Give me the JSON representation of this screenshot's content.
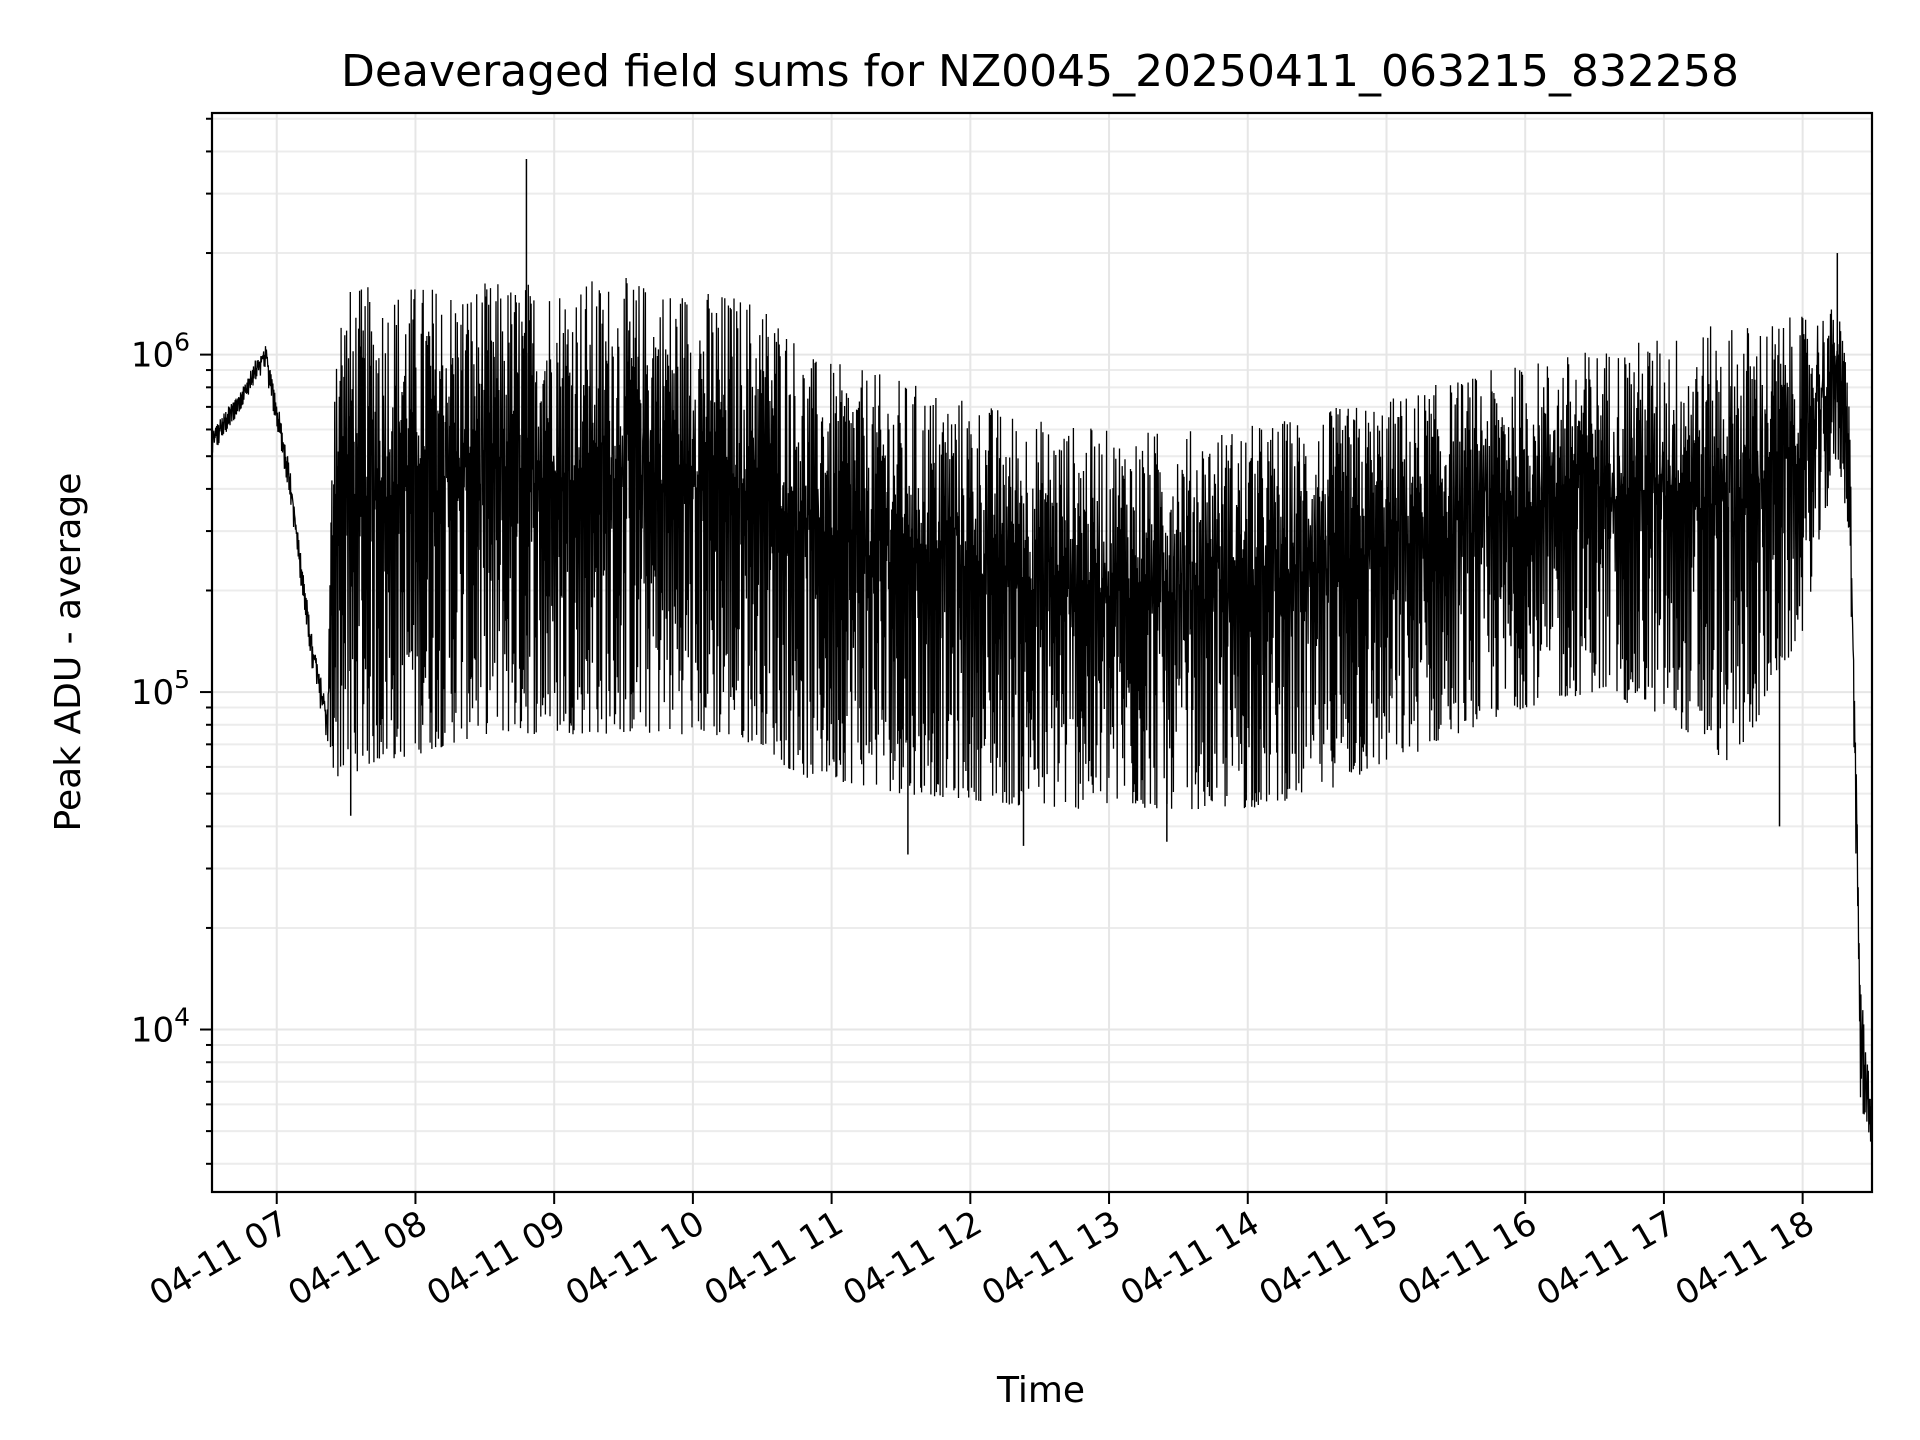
{
  "chart_data": {
    "type": "line",
    "title": "Deaveraged field sums for NZ0045_20250411_063215_832258",
    "xlabel": "Time",
    "ylabel": "Peak ADU - average",
    "yscale": "log",
    "grid": true,
    "xlim": [
      "2025-04-11 06:32",
      "2025-04-11 18:30"
    ],
    "ylim": [
      3300,
      5200000
    ],
    "x_ticks": [
      "04-11 07",
      "04-11 08",
      "04-11 09",
      "04-11 10",
      "04-11 11",
      "04-11 12",
      "04-11 13",
      "04-11 14",
      "04-11 15",
      "04-11 16",
      "04-11 17",
      "04-11 18"
    ],
    "y_ticks": [
      {
        "value": 10000,
        "base": "10",
        "exp": "4"
      },
      {
        "value": 100000,
        "base": "10",
        "exp": "5"
      },
      {
        "value": 1000000,
        "base": "10",
        "exp": "6"
      }
    ],
    "line_color": "#000000",
    "envelope": {
      "time": [
        "06:32",
        "06:45",
        "06:55",
        "07:05",
        "07:15",
        "07:22",
        "07:25",
        "07:40",
        "08:00",
        "08:30",
        "09:00",
        "09:30",
        "10:00",
        "10:30",
        "10:40",
        "10:50",
        "11:00",
        "11:30",
        "12:00",
        "12:30",
        "13:00",
        "13:30",
        "14:00",
        "14:30",
        "15:00",
        "15:30",
        "16:00",
        "16:30",
        "17:00",
        "17:30",
        "18:00",
        "18:15",
        "18:20",
        "18:22",
        "18:25",
        "18:28",
        "18:30"
      ],
      "upper": [
        600000,
        800000,
        1100000,
        500000,
        150000,
        90000,
        1600000,
        1600000,
        1650000,
        1650000,
        1700000,
        1700000,
        1600000,
        1500000,
        1300000,
        1000000,
        950000,
        850000,
        750000,
        650000,
        600000,
        600000,
        620000,
        680000,
        750000,
        850000,
        950000,
        1050000,
        1150000,
        1250000,
        1300000,
        1400000,
        900000,
        150000,
        15000,
        8000,
        6000
      ],
      "lower": [
        500000,
        700000,
        900000,
        400000,
        120000,
        70000,
        55000,
        60000,
        65000,
        75000,
        75000,
        75000,
        75000,
        70000,
        60000,
        55000,
        55000,
        50000,
        48000,
        45000,
        45000,
        45000,
        45000,
        50000,
        60000,
        75000,
        90000,
        100000,
        85000,
        60000,
        150000,
        500000,
        300000,
        80000,
        6000,
        5000,
        4500
      ]
    },
    "spikes": [
      {
        "time": "08:48",
        "value": 3800000
      },
      {
        "time": "18:15",
        "value": 2000000
      },
      {
        "time": "11:33",
        "value": 33000
      },
      {
        "time": "12:23",
        "value": 35000
      },
      {
        "time": "13:25",
        "value": 36000
      },
      {
        "time": "07:32",
        "value": 43000
      },
      {
        "time": "17:50",
        "value": 40000
      }
    ]
  }
}
